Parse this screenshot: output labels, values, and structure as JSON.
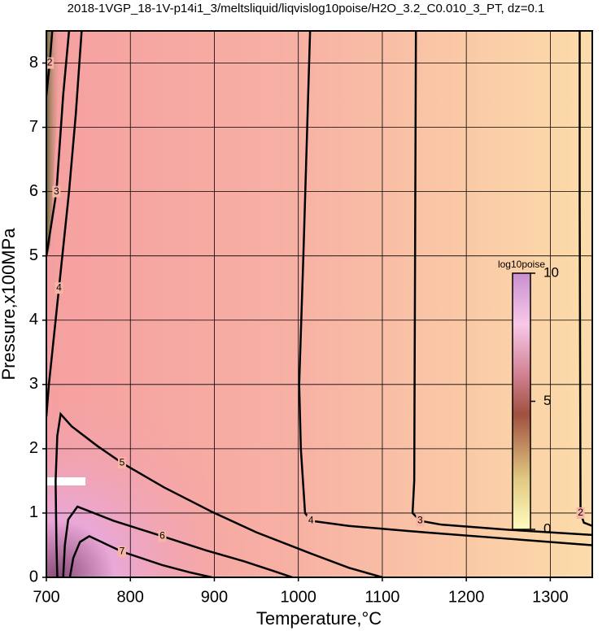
{
  "chart_data": {
    "type": "contour",
    "title": "2018-1VGP_18-1V-p14i1_3/meltsliquid/liqvislog10poise/H2O_3.2_C0.010_3_PT, dz=0.1",
    "x_label": "Temperature,°C",
    "y_label": "Pressure,x100MPa",
    "xlim": [
      700,
      1350
    ],
    "xticks": [
      700,
      800,
      900,
      1000,
      1100,
      1200,
      1300
    ],
    "ylim": [
      0,
      8.5
    ],
    "yticks": [
      0,
      1,
      2,
      3,
      4,
      5,
      6,
      7,
      8
    ],
    "grid": true,
    "colorbar": {
      "label": "log10poise",
      "zlim": [
        0,
        10
      ],
      "ticks": [
        0,
        5,
        10
      ]
    },
    "contours": [
      {
        "level": 2,
        "x": [
          1335,
          1335,
          1336,
          1340,
          1350
        ],
        "y": [
          8.5,
          5.8,
          1.0,
          0.85,
          0.8
        ]
      },
      {
        "level": 3,
        "x": [
          1140,
          1139,
          1138,
          1136,
          1145,
          1170,
          1250,
          1350
        ],
        "y": [
          8.5,
          5.0,
          1.5,
          1.0,
          0.88,
          0.82,
          0.74,
          0.66
        ]
      },
      {
        "level": 4,
        "x": [
          1014,
          1006,
          1001,
          1003,
          1008,
          1015,
          1060,
          1150,
          1250,
          1350
        ],
        "y": [
          8.5,
          5.0,
          3.0,
          2.0,
          1.0,
          0.88,
          0.8,
          0.7,
          0.6,
          0.5
        ]
      },
      {
        "level": 5,
        "x": [
          713,
          712,
          711,
          713,
          717,
          730,
          760,
          790,
          840,
          897,
          950,
          1013,
          1060,
          1100
        ],
        "y": [
          0,
          0.5,
          1.5,
          2.2,
          2.54,
          2.35,
          2.05,
          1.78,
          1.4,
          1.02,
          0.7,
          0.38,
          0.15,
          0
        ]
      },
      {
        "level": 6,
        "x": [
          720,
          722,
          726,
          737,
          780,
          838,
          890,
          935,
          970,
          993
        ],
        "y": [
          0,
          0.5,
          0.9,
          1.1,
          0.88,
          0.64,
          0.42,
          0.25,
          0.1,
          0
        ]
      },
      {
        "level": 7,
        "x": [
          728,
          732,
          740,
          751,
          790,
          838,
          870,
          897
        ],
        "y": [
          0,
          0.3,
          0.55,
          0.64,
          0.4,
          0.19,
          0.08,
          0
        ]
      },
      {
        "level": 4,
        "x": [
          742,
          735,
          727,
          715,
          703,
          700
        ],
        "y": [
          8.5,
          7.2,
          6.0,
          4.5,
          3.0,
          2.5
        ]
      },
      {
        "level": 3,
        "x": [
          727,
          720,
          712,
          700
        ],
        "y": [
          8.5,
          7.5,
          6.0,
          5.0
        ]
      },
      {
        "level": 2,
        "x": [
          707,
          704,
          700
        ],
        "y": [
          8.5,
          8.0,
          7.5
        ]
      }
    ]
  }
}
